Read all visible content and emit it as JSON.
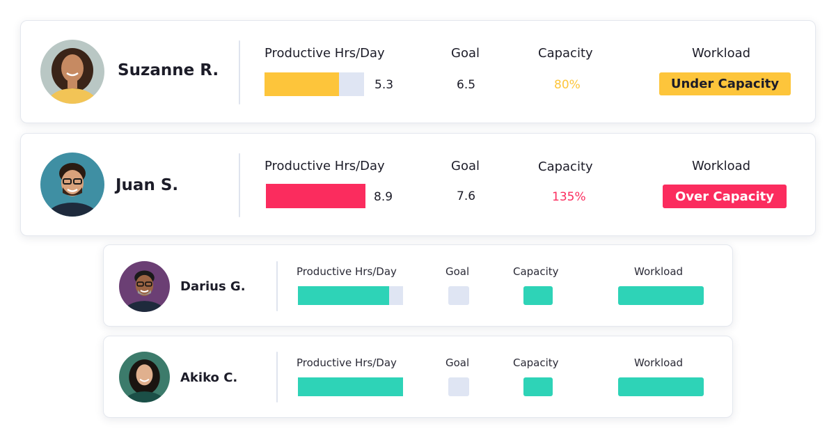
{
  "colors": {
    "under": "#fdc53b",
    "over": "#fb2c5e",
    "placeholder": "#2ed3b7",
    "track": "#dfe5f3"
  },
  "cards": [
    {
      "name": "Suzanne R.",
      "labels": {
        "hours": "Productive Hrs/Day",
        "goal": "Goal",
        "capacity": "Capacity",
        "workload": "Workload"
      },
      "hours": "5.3",
      "goal": "6.5",
      "capacity": "80%",
      "workload": "Under Capacity",
      "hours_fill_fraction": 0.75
    },
    {
      "name": "Juan S.",
      "labels": {
        "hours": "Productive Hrs/Day",
        "goal": "Goal",
        "capacity": "Capacity",
        "workload": "Workload"
      },
      "hours": "8.9",
      "goal": "7.6",
      "capacity": "135%",
      "workload": "Over Capacity",
      "hours_fill_fraction": 1.0
    },
    {
      "name": "Darius G.",
      "labels": {
        "hours": "Productive Hrs/Day",
        "goal": "Goal",
        "capacity": "Capacity",
        "workload": "Workload"
      },
      "hours_fill_fraction": 0.87
    },
    {
      "name": "Akiko C.",
      "labels": {
        "hours": "Productive Hrs/Day",
        "goal": "Goal",
        "capacity": "Capacity",
        "workload": "Workload"
      },
      "hours_fill_fraction": 1.0
    }
  ]
}
